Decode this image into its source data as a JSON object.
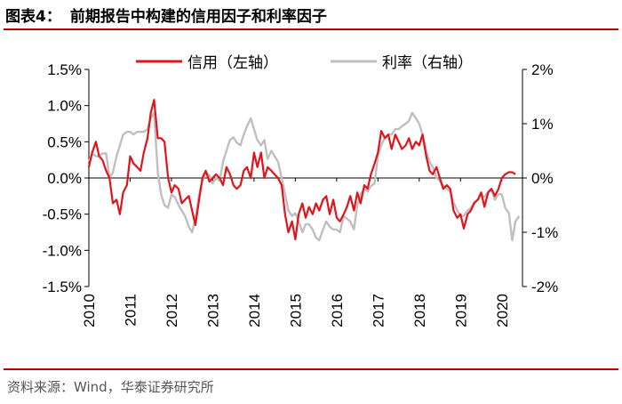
{
  "header": {
    "figure_number": "图表4：",
    "title": "前期报告中构建的信用因子和利率因子"
  },
  "footer": {
    "source": "资料来源：Wind，华泰证券研究所"
  },
  "colors": {
    "credit": "#e0141c",
    "rate": "#bfbfbf",
    "accent": "#c00000"
  },
  "chart_data": {
    "type": "line",
    "title": "前期报告中构建的信用因子和利率因子",
    "x_labels": [
      "2010",
      "2011",
      "2012",
      "2013",
      "2014",
      "2015",
      "2016",
      "2017",
      "2018",
      "2019",
      "2020"
    ],
    "x_range": [
      2010,
      2020.5
    ],
    "y_left": {
      "min": -1.5,
      "max": 1.5,
      "ticks": [
        -1.5,
        -1.0,
        -0.5,
        0.0,
        0.5,
        1.0,
        1.5
      ],
      "tick_labels": [
        "-1.5%",
        "-1.0%",
        "-0.5%",
        "0.0%",
        "0.5%",
        "1.0%",
        "1.5%"
      ]
    },
    "y_right": {
      "min": -2,
      "max": 2,
      "ticks": [
        -2,
        -1,
        0,
        1,
        2
      ],
      "tick_labels": [
        "-2%",
        "-1%",
        "0%",
        "1%",
        "2%"
      ]
    },
    "legend_position": "top-center",
    "series": [
      {
        "name": "信用（左轴）",
        "axis": "left",
        "color": "#e0141c",
        "x": [
          2010.0,
          2010.08,
          2010.17,
          2010.25,
          2010.33,
          2010.42,
          2010.5,
          2010.58,
          2010.67,
          2010.75,
          2010.83,
          2010.92,
          2011.0,
          2011.08,
          2011.17,
          2011.25,
          2011.33,
          2011.42,
          2011.5,
          2011.58,
          2011.67,
          2011.75,
          2011.83,
          2011.92,
          2012.0,
          2012.08,
          2012.17,
          2012.25,
          2012.33,
          2012.42,
          2012.5,
          2012.58,
          2012.67,
          2012.75,
          2012.83,
          2012.92,
          2013.0,
          2013.08,
          2013.17,
          2013.25,
          2013.33,
          2013.42,
          2013.5,
          2013.58,
          2013.67,
          2013.75,
          2013.83,
          2013.92,
          2014.0,
          2014.08,
          2014.17,
          2014.25,
          2014.33,
          2014.42,
          2014.5,
          2014.58,
          2014.67,
          2014.75,
          2014.83,
          2014.92,
          2015.0,
          2015.08,
          2015.17,
          2015.25,
          2015.33,
          2015.42,
          2015.5,
          2015.58,
          2015.67,
          2015.75,
          2015.83,
          2015.92,
          2016.0,
          2016.08,
          2016.17,
          2016.25,
          2016.33,
          2016.42,
          2016.5,
          2016.58,
          2016.67,
          2016.75,
          2016.83,
          2016.92,
          2017.0,
          2017.08,
          2017.17,
          2017.25,
          2017.33,
          2017.42,
          2017.5,
          2017.58,
          2017.67,
          2017.75,
          2017.83,
          2017.92,
          2018.0,
          2018.08,
          2018.17,
          2018.25,
          2018.33,
          2018.42,
          2018.5,
          2018.58,
          2018.67,
          2018.75,
          2018.83,
          2018.92,
          2019.0,
          2019.08,
          2019.17,
          2019.25,
          2019.33,
          2019.42,
          2019.5,
          2019.58,
          2019.67,
          2019.75,
          2019.83,
          2019.92,
          2020.0,
          2020.08,
          2020.17,
          2020.25,
          2020.33
        ],
        "values": [
          0.15,
          0.35,
          0.5,
          0.3,
          0.25,
          0.1,
          0.0,
          -0.35,
          -0.3,
          -0.5,
          -0.2,
          -0.1,
          0.3,
          0.2,
          0.15,
          0.1,
          0.35,
          0.55,
          0.9,
          1.08,
          0.55,
          0.55,
          0.5,
          0.0,
          -0.2,
          -0.1,
          -0.15,
          -0.35,
          -0.3,
          -0.25,
          -0.45,
          -0.65,
          -0.3,
          0.0,
          0.1,
          -0.05,
          0.0,
          0.05,
          0.0,
          -0.1,
          0.15,
          0.05,
          -0.1,
          -0.15,
          -0.1,
          0.1,
          0.15,
          0.0,
          0.35,
          0.15,
          0.35,
          0.0,
          0.15,
          0.1,
          0.05,
          0.0,
          -0.1,
          -0.5,
          -0.75,
          -0.6,
          -0.85,
          -0.5,
          -0.35,
          -0.55,
          -0.4,
          -0.5,
          -0.35,
          -0.45,
          -0.3,
          -0.25,
          -0.5,
          -0.3,
          -0.55,
          -0.6,
          -0.5,
          -0.4,
          -0.25,
          -0.45,
          -0.2,
          -0.35,
          -0.1,
          -0.15,
          0.05,
          0.2,
          0.35,
          0.65,
          0.55,
          0.6,
          0.4,
          0.6,
          0.5,
          0.4,
          0.45,
          0.55,
          0.4,
          0.5,
          0.45,
          0.6,
          0.3,
          0.1,
          0.05,
          0.15,
          0.0,
          -0.15,
          -0.1,
          -0.15,
          -0.45,
          -0.55,
          -0.5,
          -0.7,
          -0.5,
          -0.45,
          -0.35,
          -0.3,
          -0.2,
          -0.4,
          -0.2,
          -0.15,
          -0.25,
          -0.15,
          0.0,
          0.05,
          0.08,
          0.08,
          0.05
        ]
      },
      {
        "name": "利率（右轴）",
        "axis": "right",
        "color": "#bfbfbf",
        "x": [
          2010.0,
          2010.08,
          2010.17,
          2010.25,
          2010.33,
          2010.42,
          2010.5,
          2010.58,
          2010.67,
          2010.75,
          2010.83,
          2010.92,
          2011.0,
          2011.08,
          2011.17,
          2011.25,
          2011.33,
          2011.42,
          2011.5,
          2011.58,
          2011.67,
          2011.75,
          2011.83,
          2011.92,
          2012.0,
          2012.08,
          2012.17,
          2012.25,
          2012.33,
          2012.42,
          2012.5,
          2012.58,
          2012.67,
          2012.75,
          2012.83,
          2012.92,
          2013.0,
          2013.08,
          2013.17,
          2013.25,
          2013.33,
          2013.42,
          2013.5,
          2013.58,
          2013.67,
          2013.75,
          2013.83,
          2013.92,
          2014.0,
          2014.08,
          2014.17,
          2014.25,
          2014.33,
          2014.42,
          2014.5,
          2014.58,
          2014.67,
          2014.75,
          2014.83,
          2014.92,
          2015.0,
          2015.08,
          2015.17,
          2015.25,
          2015.33,
          2015.42,
          2015.5,
          2015.58,
          2015.67,
          2015.75,
          2015.83,
          2015.92,
          2016.0,
          2016.08,
          2016.17,
          2016.25,
          2016.33,
          2016.42,
          2016.5,
          2016.58,
          2016.67,
          2016.75,
          2016.83,
          2016.92,
          2017.0,
          2017.08,
          2017.17,
          2017.25,
          2017.33,
          2017.42,
          2017.5,
          2017.58,
          2017.67,
          2017.75,
          2017.83,
          2017.92,
          2018.0,
          2018.08,
          2018.17,
          2018.25,
          2018.33,
          2018.42,
          2018.5,
          2018.58,
          2018.67,
          2018.75,
          2018.83,
          2018.92,
          2019.0,
          2019.08,
          2019.17,
          2019.25,
          2019.33,
          2019.42,
          2019.5,
          2019.58,
          2019.67,
          2019.75,
          2019.83,
          2019.92,
          2020.0,
          2020.08,
          2020.17,
          2020.25,
          2020.33,
          2020.42
        ],
        "values": [
          0.3,
          0.45,
          0.4,
          0.4,
          0.45,
          0.45,
          0.0,
          0.1,
          0.4,
          0.6,
          0.8,
          0.85,
          0.85,
          0.8,
          0.85,
          0.85,
          0.85,
          0.9,
          1.1,
          1.2,
          0.1,
          -0.3,
          -0.5,
          -0.55,
          -0.3,
          -0.35,
          -0.5,
          -0.6,
          -0.7,
          -0.9,
          -1.0,
          -0.75,
          -0.3,
          -0.05,
          0.1,
          0.05,
          -0.1,
          0.0,
          -0.05,
          0.3,
          0.5,
          0.7,
          0.75,
          0.65,
          0.6,
          0.8,
          0.95,
          1.1,
          0.9,
          0.7,
          0.6,
          0.7,
          0.35,
          0.5,
          0.4,
          0.3,
          0.0,
          -0.3,
          -0.6,
          -0.7,
          -0.65,
          -0.8,
          -1.0,
          -0.85,
          -0.85,
          -0.95,
          -1.1,
          -1.15,
          -0.95,
          -0.8,
          -0.9,
          -0.95,
          -0.95,
          -1.0,
          -0.7,
          -0.75,
          -0.8,
          -0.95,
          -0.5,
          -0.3,
          -0.2,
          -0.25,
          -0.15,
          -0.1,
          0.4,
          0.6,
          0.75,
          0.8,
          0.8,
          0.9,
          0.9,
          0.95,
          1.0,
          1.05,
          1.2,
          1.1,
          1.0,
          0.8,
          0.5,
          0.3,
          0.2,
          0.0,
          -0.05,
          -0.15,
          -0.2,
          -0.25,
          -0.45,
          -0.6,
          -0.7,
          -0.7,
          -0.6,
          -0.55,
          -0.45,
          -0.4,
          -0.3,
          -0.35,
          -0.25,
          -0.2,
          -0.4,
          -0.3,
          -0.3,
          -0.55,
          -0.65,
          -1.15,
          -0.8,
          -0.7
        ]
      }
    ]
  }
}
